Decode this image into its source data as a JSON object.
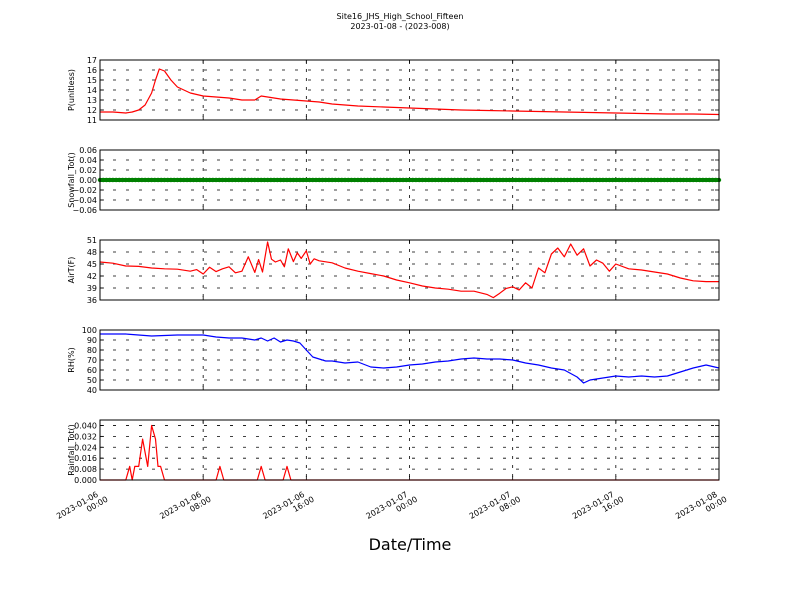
{
  "title": "Site16_JHS_High_School_Fifteen",
  "subtitle": "2023-01-08 - (2023-008)",
  "chart_data": {
    "type": "line",
    "xlabel": "Date/Time",
    "x_range": [
      "2023-01-06 00:00",
      "2023-01-08 00:00"
    ],
    "x_ticks": [
      "2023-01-06 00:00",
      "2023-01-06 08:00",
      "2023-01-06 16:00",
      "2023-01-07 00:00",
      "2023-01-07 08:00",
      "2023-01-07 16:00",
      "2023-01-08 00:00"
    ],
    "x_tick_labels": [
      [
        "2023-01-06",
        "00:00"
      ],
      [
        "2023-01-06",
        "08:00"
      ],
      [
        "2023-01-06",
        "16:00"
      ],
      [
        "2023-01-07",
        "00:00"
      ],
      [
        "2023-01-07",
        "08:00"
      ],
      [
        "2023-01-07",
        "16:00"
      ],
      [
        "2023-01-08",
        "00:00"
      ]
    ],
    "grid": true,
    "panels": [
      {
        "ylabel": "P(unitless)",
        "ylim": [
          11,
          17
        ],
        "yticks": [
          11,
          12,
          13,
          14,
          15,
          16,
          17
        ],
        "ytick_labels": [
          "11",
          "12",
          "13",
          "14",
          "15",
          "16",
          "17"
        ],
        "color": "#ff0000",
        "series": [
          {
            "x": [
              0,
              1,
              2,
              2.5,
              3,
              3.5,
              4,
              4.3,
              4.6,
              5,
              5.5,
              6,
              7,
              8,
              9,
              10,
              11,
              12,
              12.5,
              13,
              14,
              15,
              16,
              17,
              18,
              20,
              22,
              24,
              26,
              28,
              30,
              32,
              34,
              36,
              38,
              40,
              42,
              44,
              46,
              48
            ],
            "y": [
              11.8,
              11.8,
              11.7,
              11.8,
              12.0,
              12.5,
              13.7,
              15.0,
              16.1,
              15.9,
              15.0,
              14.3,
              13.7,
              13.4,
              13.3,
              13.2,
              13.0,
              13.0,
              13.4,
              13.3,
              13.1,
              13.0,
              12.9,
              12.8,
              12.6,
              12.4,
              12.3,
              12.2,
              12.1,
              12.0,
              11.95,
              11.9,
              11.85,
              11.8,
              11.75,
              11.7,
              11.65,
              11.6,
              11.6,
              11.55
            ]
          }
        ]
      },
      {
        "ylabel": "Snowfall_Tot()",
        "ylim": [
          -0.06,
          0.06
        ],
        "yticks": [
          -0.06,
          -0.04,
          -0.02,
          0.0,
          0.02,
          0.04,
          0.06
        ],
        "ytick_labels": [
          "−0.06",
          "−0.04",
          "−0.02",
          "0.00",
          "0.02",
          "0.04",
          "0.06"
        ],
        "color": "#008000",
        "marker": "dot",
        "series": [
          {
            "x": [
              0,
              48
            ],
            "y": [
              0,
              0
            ]
          }
        ]
      },
      {
        "ylabel": "AirT(F)",
        "ylim": [
          36,
          51
        ],
        "yticks": [
          36,
          39,
          42,
          45,
          48,
          51
        ],
        "ytick_labels": [
          "36",
          "39",
          "42",
          "45",
          "48",
          "51"
        ],
        "color": "#ff0000",
        "series": [
          {
            "x": [
              0,
              1,
              2,
              3,
              4,
              5,
              6,
              7,
              7.5,
              8,
              8.5,
              9,
              9.5,
              10,
              10.5,
              11,
              11.5,
              12,
              12.3,
              12.6,
              13,
              13.3,
              13.6,
              14,
              14.3,
              14.6,
              15,
              15.3,
              15.6,
              16,
              16.3,
              16.6,
              17,
              18,
              19,
              20,
              21,
              22,
              23,
              24,
              25,
              26,
              27,
              28,
              29,
              30,
              30.5,
              31,
              31.5,
              32,
              32.5,
              33,
              33.5,
              34,
              34.5,
              35,
              35.5,
              36,
              36.5,
              37,
              37.5,
              38,
              38.5,
              39,
              39.5,
              40,
              41,
              42,
              43,
              44,
              45,
              46,
              47,
              48
            ],
            "y": [
              45.5,
              45.2,
              44.5,
              44.4,
              44.0,
              43.8,
              43.7,
              43.2,
              43.6,
              42.5,
              44.2,
              43.1,
              43.8,
              44.3,
              42.8,
              43.2,
              46.8,
              42.9,
              46.1,
              43.0,
              50.5,
              46.2,
              45.5,
              46.0,
              44.3,
              48.8,
              45.6,
              47.8,
              46.4,
              48.3,
              45.0,
              46.3,
              45.8,
              45.3,
              44.0,
              43.2,
              42.6,
              42.0,
              41.0,
              40.3,
              39.5,
              39.0,
              38.7,
              38.2,
              38.2,
              37.4,
              36.6,
              37.7,
              38.9,
              39.3,
              38.5,
              40.3,
              39.0,
              44.0,
              42.8,
              47.5,
              49.0,
              46.8,
              50.0,
              47.2,
              48.8,
              44.5,
              46.0,
              45.2,
              43.2,
              45.0,
              43.8,
              43.5,
              43.0,
              42.5,
              41.5,
              40.8,
              40.6,
              40.6
            ]
          }
        ]
      },
      {
        "ylabel": "RH(%)",
        "ylim": [
          40,
          100
        ],
        "yticks": [
          40,
          50,
          60,
          70,
          80,
          90,
          100
        ],
        "ytick_labels": [
          "40",
          "50",
          "60",
          "70",
          "80",
          "90",
          "100"
        ],
        "color": "#0000ff",
        "series": [
          {
            "x": [
              0,
              2,
              4,
              6,
              8,
              9,
              10,
              11,
              12,
              12.5,
              13,
              13.5,
              14,
              14.5,
              15,
              15.5,
              16,
              16.5,
              17,
              17.5,
              18,
              19,
              20,
              21,
              22,
              23,
              24,
              25,
              26,
              27,
              28,
              29,
              30,
              31,
              32,
              33,
              34,
              35,
              36,
              37,
              37.5,
              38,
              39,
              40,
              41,
              42,
              43,
              44,
              45,
              46,
              47,
              48
            ],
            "y": [
              96,
              96,
              94,
              95,
              95,
              93,
              92,
              92,
              90,
              92,
              89,
              92,
              88,
              90,
              89,
              87,
              80,
              73,
              71,
              69,
              69,
              67,
              68,
              63,
              62,
              63,
              65,
              66,
              68,
              69,
              71,
              72,
              71,
              71,
              70,
              67,
              65,
              62,
              60,
              53,
              47,
              50,
              52,
              54,
              53,
              54,
              53,
              54,
              58,
              62,
              65,
              62
            ]
          }
        ]
      },
      {
        "ylabel": "Rainfall_Tot()",
        "ylim": [
          0,
          0.044
        ],
        "yticks": [
          0.0,
          0.008,
          0.016,
          0.024,
          0.032,
          0.04
        ],
        "ytick_labels": [
          "0.000",
          "0.008",
          "0.016",
          "0.024",
          "0.032",
          "0.040"
        ],
        "color": "#ff0000",
        "series": [
          {
            "x": [
              0,
              2.0,
              2.3,
              2.5,
              2.7,
              3.0,
              3.3,
              3.7,
              4.0,
              4.3,
              4.5,
              4.7,
              5.0,
              5.3,
              5.5,
              9.0,
              9.3,
              9.6,
              12.2,
              12.5,
              12.8,
              14.2,
              14.5,
              14.8,
              48
            ],
            "y": [
              0,
              0,
              0.01,
              0,
              0.01,
              0.01,
              0.03,
              0.01,
              0.04,
              0.03,
              0.01,
              0.01,
              0,
              0,
              0,
              0,
              0.01,
              0,
              0,
              0.01,
              0,
              0,
              0.01,
              0,
              0
            ]
          }
        ]
      }
    ]
  }
}
